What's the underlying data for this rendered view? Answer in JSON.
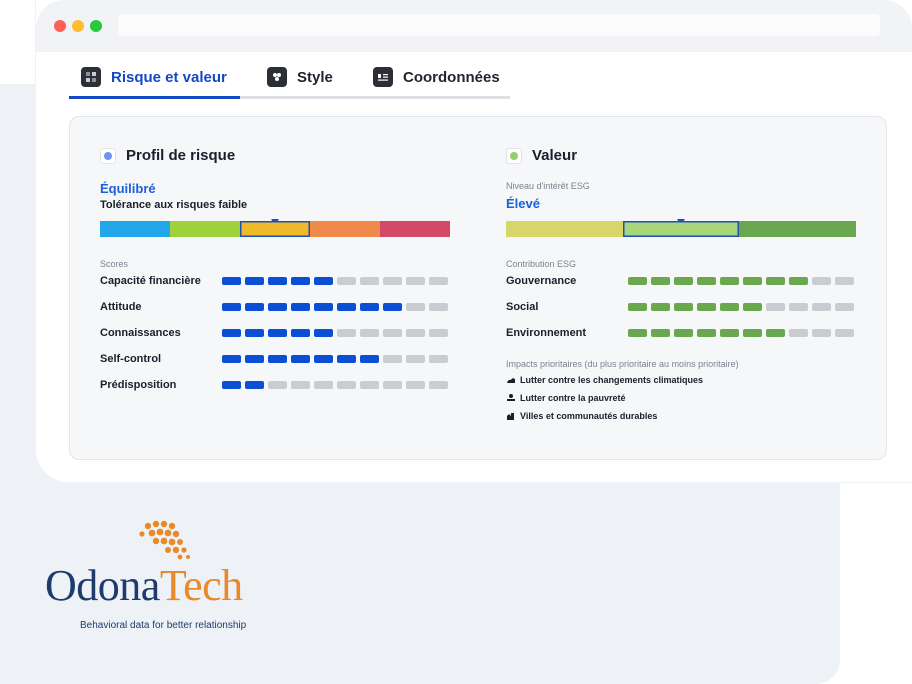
{
  "tabs": [
    {
      "label": "Risque et valeur",
      "icon": "grid-icon",
      "active": true
    },
    {
      "label": "Style",
      "icon": "palette-icon",
      "active": false
    },
    {
      "label": "Coordonnées",
      "icon": "id-card-icon",
      "active": false
    }
  ],
  "risk": {
    "title": "Profil de risque",
    "level": "Équilibré",
    "tolerance": "Tolérance aux risques faible",
    "gauge_colors": [
      "#22a7e8",
      "#9fd13a",
      "#f0b92a",
      "#ef8a4a",
      "#d34a68"
    ],
    "gauge_selected_index": 2,
    "scores_label": "Scores",
    "scores": [
      {
        "label": "Capacité financière",
        "value": 5,
        "max": 10
      },
      {
        "label": "Attitude",
        "value": 8,
        "max": 10
      },
      {
        "label": "Connaissances",
        "value": 5,
        "max": 10
      },
      {
        "label": "Self-control",
        "value": 7,
        "max": 10
      },
      {
        "label": "Prédisposition",
        "value": 2,
        "max": 10
      }
    ]
  },
  "value": {
    "title": "Valeur",
    "esg_label": "Niveau d'intérêt ESG",
    "level": "Élevé",
    "gauge_colors": [
      "#d8d66a",
      "#a8d67a",
      "#6aa84f"
    ],
    "gauge_selected_index": 1,
    "contribution_label": "Contribution ESG",
    "contributions": [
      {
        "label": "Gouvernance",
        "value": 8,
        "max": 10
      },
      {
        "label": "Social",
        "value": 6,
        "max": 10
      },
      {
        "label": "Environnement",
        "value": 7,
        "max": 10
      }
    ],
    "impacts_label": "Impacts prioritaires (du plus prioritaire au moins prioritaire)",
    "impacts": [
      {
        "label": "Lutter contre les changements climatiques",
        "icon": "climate-icon"
      },
      {
        "label": "Lutter contre la pauvreté",
        "icon": "poverty-icon"
      },
      {
        "label": "Villes et communautés durables",
        "icon": "city-icon"
      }
    ]
  },
  "brand": {
    "name_part1": "Odona",
    "name_part2": "Tech",
    "tagline": "Behavioral data for better relationship",
    "color_primary": "#1d3c6a",
    "color_accent": "#e8892b"
  }
}
